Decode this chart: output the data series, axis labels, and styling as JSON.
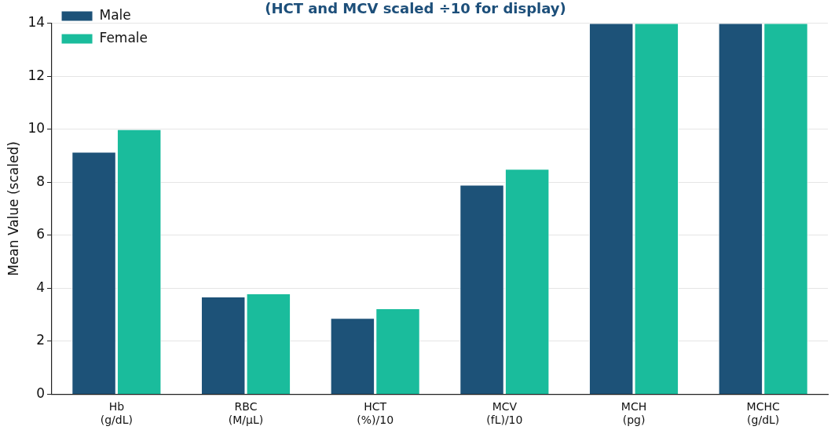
{
  "chart_data": {
    "type": "bar",
    "subtitle": "(HCT and MCV scaled ÷10 for display)",
    "ylabel": "Mean Value (scaled)",
    "categories": [
      "Hb\n(g/dL)",
      "RBC\n(M/µL)",
      "HCT\n(%)/10",
      "MCV\n(fL)/10",
      "MCH\n(pg)",
      "MCHC\n(g/dL)"
    ],
    "series": [
      {
        "name": "Male",
        "color": "#1d5278",
        "values": [
          9.15,
          3.68,
          2.88,
          7.9,
          14,
          14
        ]
      },
      {
        "name": "Female",
        "color": "#1abc9c",
        "values": [
          10.0,
          3.8,
          3.24,
          8.5,
          14,
          14
        ]
      }
    ],
    "ylim": [
      0,
      14
    ],
    "yticks": [
      0,
      2,
      4,
      6,
      8,
      10,
      12,
      14
    ],
    "grid": "y",
    "legend": "top left"
  }
}
